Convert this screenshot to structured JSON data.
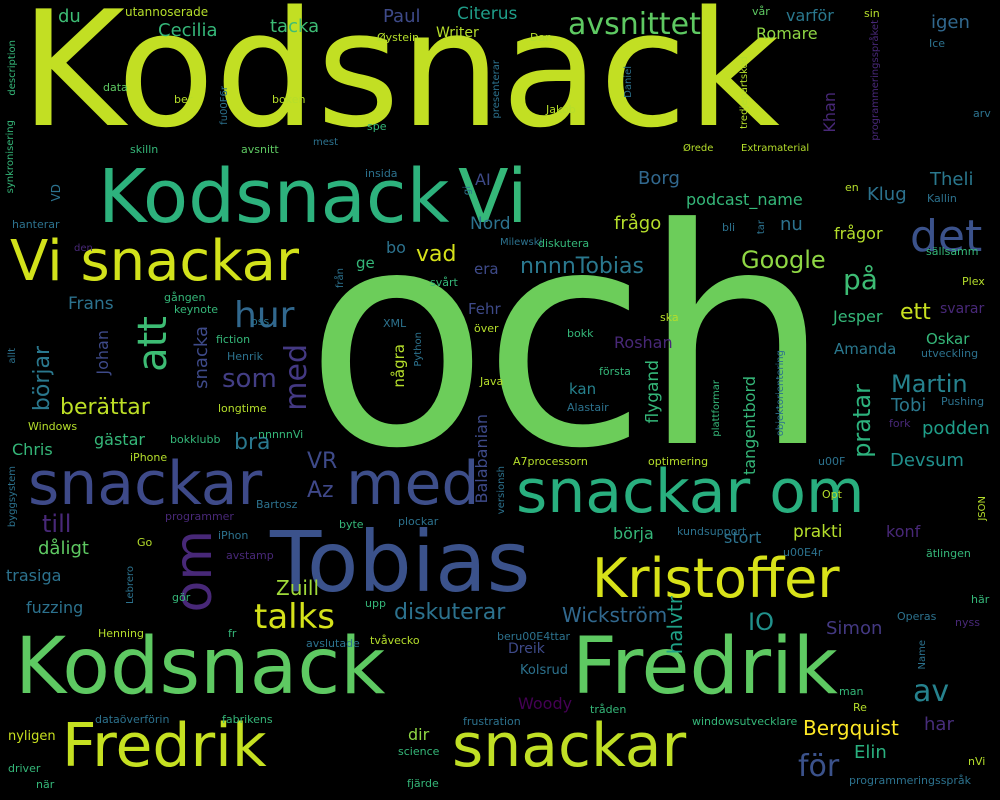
{
  "words": [
    {
      "text": "Kodsnack",
      "color": "#c2df23"
    },
    {
      "text": "och",
      "color": "#6ccd5a"
    },
    {
      "text": "Kodsnack",
      "color": "#2db27d"
    },
    {
      "text": "Vi",
      "color": "#35b779"
    },
    {
      "text": "Vi snackar",
      "color": "#d2e21b"
    },
    {
      "text": "det",
      "color": "#3b528b"
    },
    {
      "text": "snackar",
      "color": "#3e4a89"
    },
    {
      "text": "med",
      "color": "#3d4e8a"
    },
    {
      "text": "snackar om",
      "color": "#29af7f"
    },
    {
      "text": "Tobias",
      "color": "#3b528b"
    },
    {
      "text": "om",
      "color": "#482878"
    },
    {
      "text": "Kristoffer",
      "color": "#d8e219"
    },
    {
      "text": "Kodsnack",
      "color": "#5ec962"
    },
    {
      "text": "Fredrik",
      "color": "#5ec962"
    },
    {
      "text": "Fredrik",
      "color": "#c5e021"
    },
    {
      "text": "snackar",
      "color": "#c0df25"
    },
    {
      "text": "att",
      "color": "#3dbc74"
    },
    {
      "text": "hur",
      "color": "#31688e"
    },
    {
      "text": "som",
      "color": "#433e85"
    },
    {
      "text": "med",
      "color": "#443983"
    },
    {
      "text": "avsnittet",
      "color": "#5ec962"
    },
    {
      "text": "på",
      "color": "#3dbc74"
    },
    {
      "text": "ett",
      "color": "#c8e020"
    },
    {
      "text": "talks",
      "color": "#d5e21a"
    },
    {
      "text": "av",
      "color": "#26828e"
    },
    {
      "text": "för",
      "color": "#3b528b"
    },
    {
      "text": "till",
      "color": "#482878"
    },
    {
      "text": "VR",
      "color": "#3e4a89"
    },
    {
      "text": "Az",
      "color": "#3f4889"
    },
    {
      "text": "börjar",
      "color": "#2a788e"
    },
    {
      "text": "berättar",
      "color": "#bddf26"
    },
    {
      "text": "Martin",
      "color": "#26828e"
    },
    {
      "text": "pratar",
      "color": "#2db27d"
    },
    {
      "text": "Google",
      "color": "#8fd744"
    },
    {
      "text": "vad",
      "color": "#d5e21a"
    },
    {
      "text": "nnnnTobias",
      "color": "#2a788e"
    },
    {
      "text": "Tobi",
      "color": "#2a788e"
    },
    {
      "text": "podden",
      "color": "#1f9e89"
    },
    {
      "text": "Devsum",
      "color": "#21908d"
    },
    {
      "text": "bra",
      "color": "#2a788e"
    },
    {
      "text": "diskuterar",
      "color": "#2c728e"
    },
    {
      "text": "Wickström",
      "color": "#31688e"
    },
    {
      "text": "IO",
      "color": "#21918c"
    },
    {
      "text": "Zuill",
      "color": "#a0da39"
    },
    {
      "text": "halvtr",
      "color": "#1fa187"
    },
    {
      "text": "Simon",
      "color": "#443983"
    },
    {
      "text": "Bergquist",
      "color": "#fde725"
    },
    {
      "text": "Elin",
      "color": "#2ab07f"
    },
    {
      "text": "har",
      "color": "#472d7b"
    },
    {
      "text": "dir",
      "color": "#8fd744"
    },
    {
      "text": "Woody",
      "color": "#440154"
    },
    {
      "text": "Cecilia",
      "color": "#35b779"
    },
    {
      "text": "tacka",
      "color": "#3dbc74"
    },
    {
      "text": "Paul",
      "color": "#3e4a89"
    },
    {
      "text": "Citerus",
      "color": "#1f9e89"
    },
    {
      "text": "Romare",
      "color": "#8fd744"
    },
    {
      "text": "varför",
      "color": "#2a788e"
    },
    {
      "text": "igen",
      "color": "#31688e"
    },
    {
      "text": "du",
      "color": "#3dbc74"
    },
    {
      "text": "Writer",
      "color": "#b5de2b"
    },
    {
      "text": "Theli",
      "color": "#2a788e"
    },
    {
      "text": "Klug",
      "color": "#2c728e"
    },
    {
      "text": "Borg",
      "color": "#31688e"
    },
    {
      "text": "AI",
      "color": "#3e4a89"
    },
    {
      "text": "Nord",
      "color": "#2c728e"
    },
    {
      "text": "frågo",
      "color": "#b5de2b"
    },
    {
      "text": "nu",
      "color": "#2c728e"
    },
    {
      "text": "frågor",
      "color": "#b5de2b"
    },
    {
      "text": "podcast_name",
      "color": "#35b779"
    },
    {
      "text": "bo",
      "color": "#2c728e"
    },
    {
      "text": "ge",
      "color": "#35b779"
    },
    {
      "text": "era",
      "color": "#3e4a89"
    },
    {
      "text": "Frans",
      "color": "#2c728e"
    },
    {
      "text": "Fehr",
      "color": "#3e4a89"
    },
    {
      "text": "Jesper",
      "color": "#35b779"
    },
    {
      "text": "svarar",
      "color": "#482878"
    },
    {
      "text": "Oskar",
      "color": "#35b779"
    },
    {
      "text": "Amanda",
      "color": "#2a788e"
    },
    {
      "text": "Roshan",
      "color": "#482878"
    },
    {
      "text": "kan",
      "color": "#26828e"
    },
    {
      "text": "gästar",
      "color": "#35b779"
    },
    {
      "text": "Chris",
      "color": "#35b779"
    },
    {
      "text": "dåligt",
      "color": "#5ec962"
    },
    {
      "text": "trasiga",
      "color": "#2c728e"
    },
    {
      "text": "fuzzing",
      "color": "#2c728e"
    },
    {
      "text": "prakti",
      "color": "#b5de2b"
    },
    {
      "text": "konf",
      "color": "#482878"
    },
    {
      "text": "börja",
      "color": "#35b779"
    },
    {
      "text": "stort",
      "color": "#2c728e"
    },
    {
      "text": "Dreik",
      "color": "#3e4a89"
    },
    {
      "text": "Kolsrud",
      "color": "#2c728e"
    },
    {
      "text": "Johan",
      "color": "#3e4a89"
    },
    {
      "text": "Balabanian",
      "color": "#3e4a89"
    },
    {
      "text": "flygand",
      "color": "#35b779"
    },
    {
      "text": "tangentbord",
      "color": "#35b779"
    },
    {
      "text": "snacka",
      "color": "#3e4a89"
    },
    {
      "text": "Khan",
      "color": "#482878"
    },
    {
      "text": "några",
      "color": "#b5de2b"
    },
    {
      "text": "utannoserade",
      "color": "#b5de2b"
    },
    {
      "text": "Dan",
      "color": "#b5de2b"
    },
    {
      "text": "Øystein",
      "color": "#b5de2b"
    },
    {
      "text": "data",
      "color": "#5ec962"
    },
    {
      "text": "ber",
      "color": "#b5de2b"
    },
    {
      "text": "boken",
      "color": "#b5de2b"
    },
    {
      "text": "fu00F6r",
      "color": "#2c728e"
    },
    {
      "text": "Jakob",
      "color": "#b5de2b"
    },
    {
      "text": "Daniel",
      "color": "#2c728e"
    },
    {
      "text": "presenterar",
      "color": "#2c728e"
    },
    {
      "text": "tredjepartskod",
      "color": "#b5de2b"
    },
    {
      "text": "programmeringsspråket",
      "color": "#482878"
    },
    {
      "text": "vår",
      "color": "#5ec962"
    },
    {
      "text": "sin",
      "color": "#b5de2b"
    },
    {
      "text": "Ice",
      "color": "#2c728e"
    },
    {
      "text": "arv",
      "color": "#2c728e"
    },
    {
      "text": "description",
      "color": "#35b779"
    },
    {
      "text": "synkronisering",
      "color": "#35b779"
    },
    {
      "text": "spe",
      "color": "#35b779"
    },
    {
      "text": "skilln",
      "color": "#35b779"
    },
    {
      "text": "avsnitt",
      "color": "#5ec962"
    },
    {
      "text": "insida",
      "color": "#2c728e"
    },
    {
      "text": "mest",
      "color": "#2c728e"
    },
    {
      "text": "Extramaterial",
      "color": "#b5de2b"
    },
    {
      "text": "Ørede",
      "color": "#b5de2b"
    },
    {
      "text": "en",
      "color": "#b5de2b"
    },
    {
      "text": "Kallin",
      "color": "#2c728e"
    },
    {
      "text": "VD",
      "color": "#2c728e"
    },
    {
      "text": "hanterar",
      "color": "#2c728e"
    },
    {
      "text": "den",
      "color": "#482878"
    },
    {
      "text": "Milewski",
      "color": "#2c728e"
    },
    {
      "text": "diskutera",
      "color": "#35b779"
    },
    {
      "text": "bli",
      "color": "#2c728e"
    },
    {
      "text": "tar",
      "color": "#2c728e"
    },
    {
      "text": "sällsamm",
      "color": "#35b779"
    },
    {
      "text": "Plex",
      "color": "#b5de2b"
    },
    {
      "text": "gi",
      "color": "#2c728e"
    },
    {
      "text": "gången",
      "color": "#35b779"
    },
    {
      "text": "keynote",
      "color": "#35b779"
    },
    {
      "text": "oss",
      "color": "#2c728e"
    },
    {
      "text": "från",
      "color": "#2c728e"
    },
    {
      "text": "svårt",
      "color": "#35b779"
    },
    {
      "text": "XML",
      "color": "#2c728e"
    },
    {
      "text": "över",
      "color": "#b5de2b"
    },
    {
      "text": "ska",
      "color": "#b5de2b"
    },
    {
      "text": "bokk",
      "color": "#35b779"
    },
    {
      "text": "fiction",
      "color": "#35b779"
    },
    {
      "text": "Henrik",
      "color": "#2c728e"
    },
    {
      "text": "Python",
      "color": "#2c728e"
    },
    {
      "text": "första",
      "color": "#35b779"
    },
    {
      "text": "utveckling",
      "color": "#2c728e"
    },
    {
      "text": "allt",
      "color": "#2c728e"
    },
    {
      "text": "longtime",
      "color": "#b5de2b"
    },
    {
      "text": "Java",
      "color": "#b5de2b"
    },
    {
      "text": "Alastair",
      "color": "#2c728e"
    },
    {
      "text": "Pushing",
      "color": "#2c728e"
    },
    {
      "text": "fork",
      "color": "#482878"
    },
    {
      "text": "Windows",
      "color": "#b5de2b"
    },
    {
      "text": "bokklubb",
      "color": "#35b779"
    },
    {
      "text": "nnnnnVi",
      "color": "#35b779"
    },
    {
      "text": "plattformar",
      "color": "#35b779"
    },
    {
      "text": "objektorientering",
      "color": "#2c728e"
    },
    {
      "text": "iPhone",
      "color": "#b5de2b"
    },
    {
      "text": "A7processorn",
      "color": "#b5de2b"
    },
    {
      "text": "optimering",
      "color": "#b5de2b"
    },
    {
      "text": "u00F",
      "color": "#2c728e"
    },
    {
      "text": "versionsh",
      "color": "#2c728e"
    },
    {
      "text": "programmer",
      "color": "#482878"
    },
    {
      "text": "Bartosz",
      "color": "#2c728e"
    },
    {
      "text": "Opt",
      "color": "#b5de2b"
    },
    {
      "text": "JSON",
      "color": "#b5de2b"
    },
    {
      "text": "byggsystem",
      "color": "#2c728e"
    },
    {
      "text": "iPhon",
      "color": "#2c728e"
    },
    {
      "text": "byte",
      "color": "#35b779"
    },
    {
      "text": "plockar",
      "color": "#2c728e"
    },
    {
      "text": "kundsupport",
      "color": "#2c728e"
    },
    {
      "text": "u00E4r",
      "color": "#2c728e"
    },
    {
      "text": "Go",
      "color": "#b5de2b"
    },
    {
      "text": "avstamp",
      "color": "#482878"
    },
    {
      "text": "ätlingen",
      "color": "#35b779"
    },
    {
      "text": "Lebrero",
      "color": "#2c728e"
    },
    {
      "text": "gör",
      "color": "#35b779"
    },
    {
      "text": "upp",
      "color": "#35b779"
    },
    {
      "text": "här",
      "color": "#35b779"
    },
    {
      "text": "Operas",
      "color": "#2c728e"
    },
    {
      "text": "nyss",
      "color": "#482878"
    },
    {
      "text": "Henning",
      "color": "#b5de2b"
    },
    {
      "text": "fr",
      "color": "#35b779"
    },
    {
      "text": "avslutade",
      "color": "#2c728e"
    },
    {
      "text": "tvåvecko",
      "color": "#b5de2b"
    },
    {
      "text": "beru00E4ttar",
      "color": "#2c728e"
    },
    {
      "text": "Name",
      "color": "#2c728e"
    },
    {
      "text": "man",
      "color": "#35b779"
    },
    {
      "text": "Re",
      "color": "#b5de2b"
    },
    {
      "text": "dataöverförin",
      "color": "#2c728e"
    },
    {
      "text": "fabrikens",
      "color": "#35b779"
    },
    {
      "text": "frustration",
      "color": "#2c728e"
    },
    {
      "text": "tråden",
      "color": "#35b779"
    },
    {
      "text": "windowsutvecklare",
      "color": "#35b779"
    },
    {
      "text": "nyligen",
      "color": "#c8e020"
    },
    {
      "text": "science",
      "color": "#35b779"
    },
    {
      "text": "driver",
      "color": "#35b779"
    },
    {
      "text": "när",
      "color": "#35b779"
    },
    {
      "text": "fjärde",
      "color": "#35b779"
    },
    {
      "text": "programmeringsspråk",
      "color": "#2c728e"
    },
    {
      "text": "nVi",
      "color": "#b5de2b"
    }
  ]
}
